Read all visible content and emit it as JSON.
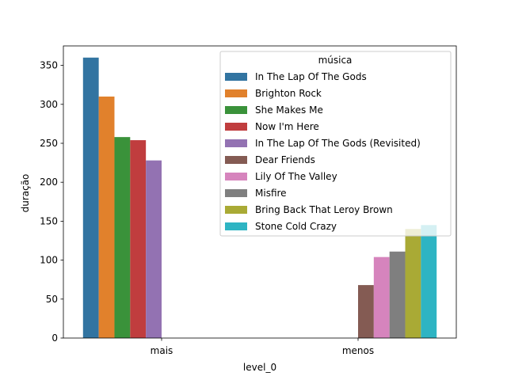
{
  "chart_data": {
    "type": "bar",
    "xlabel": "level_0",
    "ylabel": "duração",
    "ylim": [
      0,
      375
    ],
    "yticks": [
      0,
      50,
      100,
      150,
      200,
      250,
      300,
      350
    ],
    "categories": [
      "mais",
      "menos"
    ],
    "grid": false,
    "legend": {
      "title": "música",
      "placement": "top-right"
    },
    "series": [
      {
        "name": "In The Lap Of The Gods",
        "color": "#3274a1",
        "values": [
          360,
          null
        ]
      },
      {
        "name": "Brighton Rock",
        "color": "#e1812c",
        "values": [
          310,
          null
        ]
      },
      {
        "name": "She Makes Me",
        "color": "#3a923a",
        "values": [
          258,
          null
        ]
      },
      {
        "name": "Now I'm Here",
        "color": "#c03d3e",
        "values": [
          254,
          null
        ]
      },
      {
        "name": "In The Lap Of The Gods (Revisited)",
        "color": "#9372b2",
        "values": [
          228,
          null
        ]
      },
      {
        "name": "Dear Friends",
        "color": "#845b53",
        "values": [
          null,
          68
        ]
      },
      {
        "name": "Lily Of The Valley",
        "color": "#d684bd",
        "values": [
          null,
          104
        ]
      },
      {
        "name": "Misfire",
        "color": "#7f7f7f",
        "values": [
          null,
          111
        ]
      },
      {
        "name": "Bring Back That Leroy Brown",
        "color": "#a9aa35",
        "values": [
          null,
          140
        ]
      },
      {
        "name": "Stone Cold Crazy",
        "color": "#2eb4c3",
        "values": [
          null,
          145
        ]
      }
    ]
  }
}
